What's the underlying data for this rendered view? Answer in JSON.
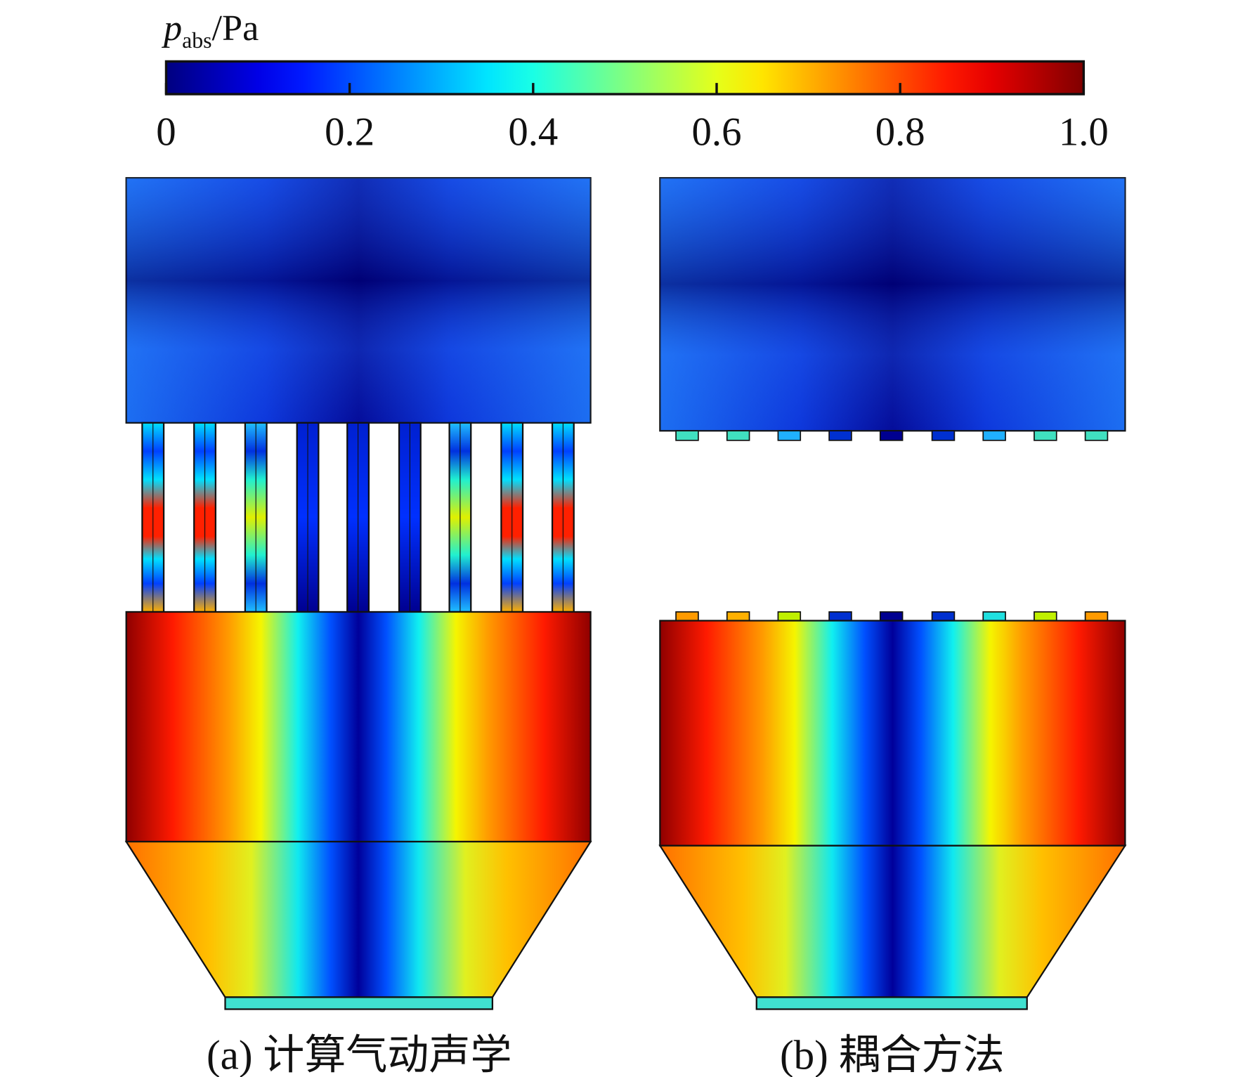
{
  "chart_data": {
    "type": "colorbar",
    "label": {
      "symbol": "p",
      "subscript": "abs",
      "unit": "/Pa"
    },
    "colormap": "jet",
    "clim": [
      0,
      1.0
    ],
    "ticks": [
      0,
      0.2,
      0.4,
      0.6,
      0.8,
      {
        "value": 1.0,
        "label": "1.0"
      }
    ],
    "panels": [
      "(a) 计算气动声学",
      "(b) 耦合方法"
    ]
  }
}
